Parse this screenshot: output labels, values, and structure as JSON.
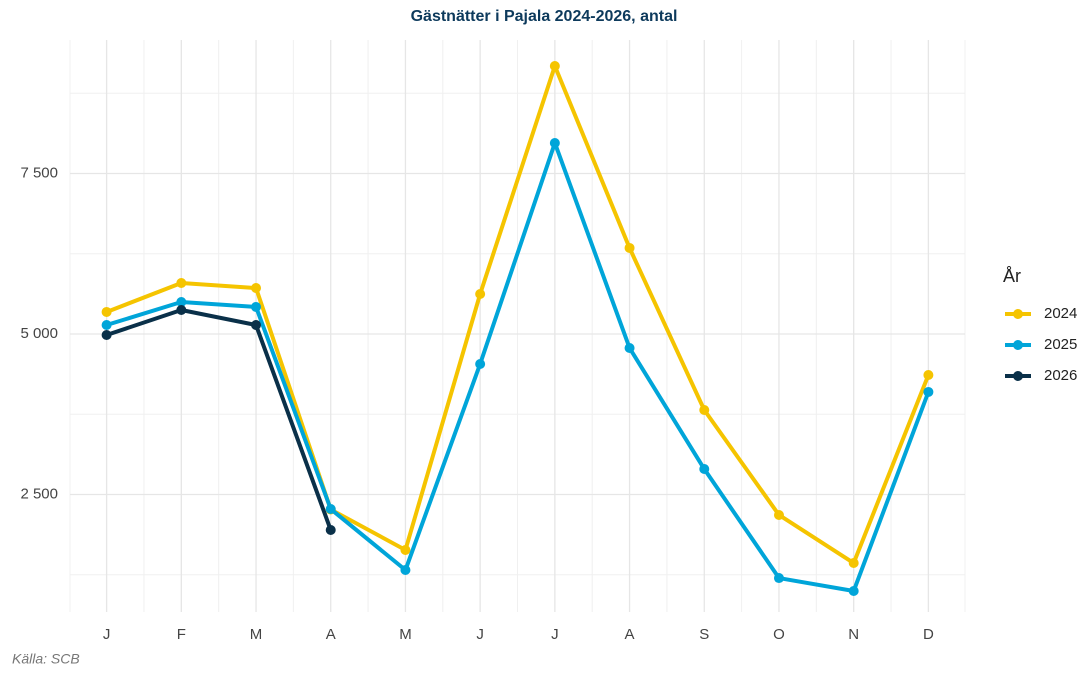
{
  "chart_data": {
    "type": "line",
    "title": "Gästnätter i Pajala 2024-2026, antal",
    "caption": "Källa: SCB",
    "legend_title": "År",
    "legend_position": "right",
    "categories": [
      "J",
      "F",
      "M",
      "A",
      "M",
      "J",
      "J",
      "A",
      "S",
      "O",
      "N",
      "D"
    ],
    "series": [
      {
        "name": "2024",
        "color": "#f5c400",
        "values": [
          5343,
          5794,
          5716,
          2266,
          1636,
          5623,
          9174,
          6340,
          3816,
          2181,
          1433,
          4361
        ]
      },
      {
        "name": "2025",
        "color": "#00a5d9",
        "values": [
          5140,
          5498,
          5421,
          2274,
          1324,
          4533,
          7975,
          4782,
          2897,
          1199,
          997,
          4097
        ]
      },
      {
        "name": "2026",
        "color": "#0a3049",
        "values": [
          4984,
          5374,
          5140,
          1947,
          null,
          null,
          null,
          null,
          null,
          null,
          null,
          null
        ]
      }
    ],
    "ylim": [
      670,
      9579
    ],
    "yticks": [
      {
        "value": 2500,
        "label": "2 500"
      },
      {
        "value": 5000,
        "label": "5 000"
      },
      {
        "value": 7500,
        "label": "7 500"
      }
    ],
    "minor_yticks": [
      1250,
      3750,
      6250,
      8750
    ],
    "grid": true
  }
}
